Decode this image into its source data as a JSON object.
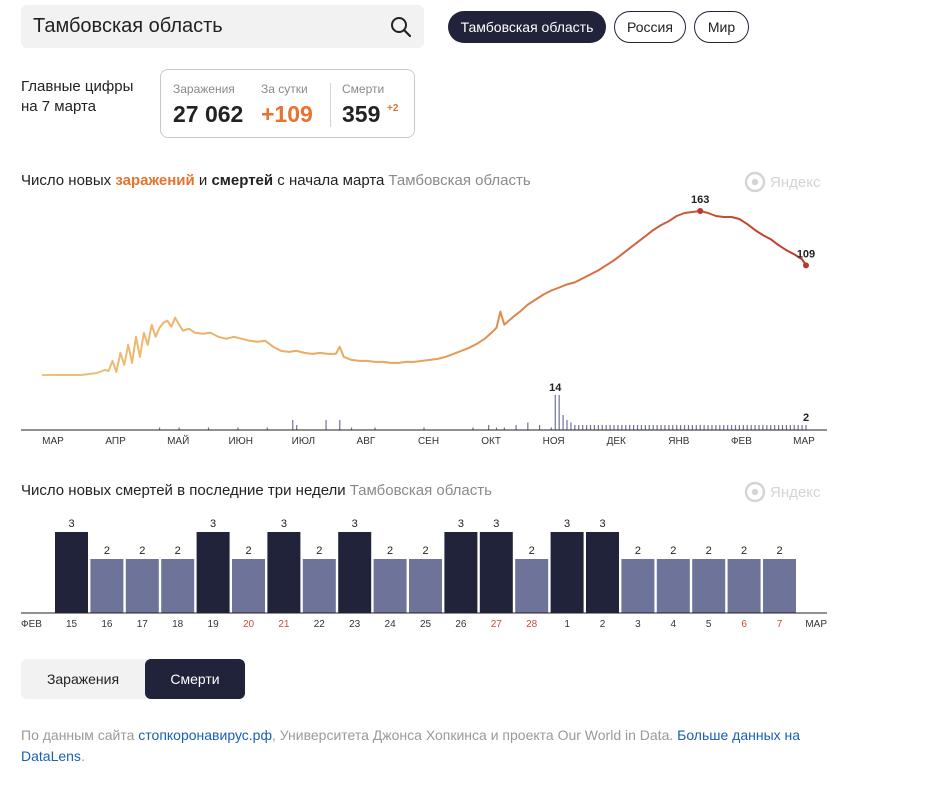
{
  "search": {
    "value": "Тамбовская область"
  },
  "region_chips": [
    {
      "label": "Тамбовская область",
      "active": true
    },
    {
      "label": "Россия",
      "active": false
    },
    {
      "label": "Мир",
      "active": false
    }
  ],
  "summary": {
    "label_line1": "Главные цифры",
    "label_line2": "на 7 марта",
    "infections_label": "Заражения",
    "infections_value": "27 062",
    "daily_label": "За сутки",
    "daily_value": "+109",
    "deaths_label": "Смерти",
    "deaths_value": "359",
    "deaths_delta": "+2"
  },
  "chart1": {
    "title_part1": "Число новых ",
    "title_cases": "заражений",
    "title_part2": " и ",
    "title_deaths": "смертей",
    "title_part3": " с начала марта",
    "region": "Тамбовская область",
    "logo_text": "Яндекс"
  },
  "chart2": {
    "title": "Число новых смертей в последние три недели",
    "region": "Тамбовская область",
    "logo_text": "Яндекс"
  },
  "toggle": {
    "infections": "Заражения",
    "deaths": "Смерти",
    "active": "deaths"
  },
  "footer": {
    "text1": "По данным сайта ",
    "link1": "стопкоронавирус.рф",
    "text2": ",  Университета Джонса Хопкинса и  проекта Our World in Data. ",
    "link2": "Больше данных на DataLens",
    "text3": "."
  },
  "colors": {
    "cases_start": "#eec07a",
    "cases_end": "#b8382e",
    "deaths_bar": "#20233a",
    "deaths_bar_light": "#6e7399",
    "weekend": "#d04a3a",
    "accent": "#e8722e"
  },
  "chart_data": [
    {
      "type": "line",
      "x_axis_labels": [
        "МАР",
        "АПР",
        "МАЙ",
        "ИЮН",
        "ИЮЛ",
        "АВГ",
        "СЕН",
        "ОКТ",
        "НОЯ",
        "ДЕК",
        "ЯНВ",
        "ФЕВ",
        "МАР"
      ],
      "series": [
        {
          "name": "заражений",
          "points": [
            [
              0,
              0
            ],
            [
              20,
              0
            ],
            [
              28,
              2
            ],
            [
              32,
              5
            ],
            [
              34,
              4
            ],
            [
              36,
              14
            ],
            [
              38,
              3
            ],
            [
              40,
              22
            ],
            [
              42,
              10
            ],
            [
              44,
              30
            ],
            [
              46,
              12
            ],
            [
              48,
              38
            ],
            [
              50,
              18
            ],
            [
              52,
              42
            ],
            [
              54,
              30
            ],
            [
              56,
              50
            ],
            [
              58,
              38
            ],
            [
              60,
              47
            ],
            [
              62,
              52
            ],
            [
              64,
              54
            ],
            [
              66,
              48
            ],
            [
              68,
              57
            ],
            [
              70,
              50
            ],
            [
              72,
              44
            ],
            [
              75,
              46
            ],
            [
              78,
              42
            ],
            [
              82,
              41
            ],
            [
              86,
              42
            ],
            [
              90,
              38
            ],
            [
              94,
              36
            ],
            [
              98,
              38
            ],
            [
              102,
              36
            ],
            [
              106,
              34
            ],
            [
              110,
              33
            ],
            [
              114,
              34
            ],
            [
              118,
              28
            ],
            [
              122,
              24
            ],
            [
              126,
              23
            ],
            [
              130,
              24
            ],
            [
              134,
              22
            ],
            [
              138,
              21
            ],
            [
              142,
              22
            ],
            [
              146,
              21
            ],
            [
              150,
              21
            ],
            [
              152,
              28
            ],
            [
              154,
              18
            ],
            [
              158,
              15
            ],
            [
              162,
              14
            ],
            [
              166,
              14
            ],
            [
              170,
              13
            ],
            [
              174,
              13
            ],
            [
              178,
              12
            ],
            [
              182,
              12
            ],
            [
              186,
              13
            ],
            [
              190,
              13
            ],
            [
              194,
              14
            ],
            [
              198,
              15
            ],
            [
              202,
              16
            ],
            [
              206,
              18
            ],
            [
              210,
              21
            ],
            [
              214,
              24
            ],
            [
              218,
              27
            ],
            [
              222,
              31
            ],
            [
              226,
              36
            ],
            [
              230,
              43
            ],
            [
              232,
              47
            ],
            [
              234,
              63
            ],
            [
              236,
              50
            ],
            [
              240,
              57
            ],
            [
              244,
              63
            ],
            [
              248,
              70
            ],
            [
              252,
              75
            ],
            [
              256,
              80
            ],
            [
              260,
              84
            ],
            [
              264,
              87
            ],
            [
              268,
              90
            ],
            [
              272,
              92
            ],
            [
              276,
              96
            ],
            [
              280,
              100
            ],
            [
              284,
              104
            ],
            [
              288,
              109
            ],
            [
              292,
              114
            ],
            [
              296,
              120
            ],
            [
              300,
              126
            ],
            [
              304,
              132
            ],
            [
              308,
              138
            ],
            [
              312,
              144
            ],
            [
              316,
              149
            ],
            [
              320,
              153
            ],
            [
              324,
              158
            ],
            [
              328,
              161
            ],
            [
              332,
              162
            ],
            [
              336,
              163
            ],
            [
              340,
              161
            ],
            [
              344,
              158
            ],
            [
              348,
              157
            ],
            [
              352,
              157
            ],
            [
              356,
              155
            ],
            [
              360,
              150
            ],
            [
              364,
              144
            ],
            [
              368,
              139
            ],
            [
              372,
              135
            ],
            [
              376,
              129
            ],
            [
              380,
              124
            ],
            [
              384,
              120
            ],
            [
              388,
              115
            ],
            [
              390,
              109
            ]
          ]
        },
        {
          "name": "смертей",
          "bars": [
            [
              60,
              1
            ],
            [
              70,
              1
            ],
            [
              85,
              1
            ],
            [
              100,
              1
            ],
            [
              115,
              1
            ],
            [
              128,
              4
            ],
            [
              130,
              2
            ],
            [
              145,
              4
            ],
            [
              152,
              4
            ],
            [
              158,
              1
            ],
            [
              170,
              1
            ],
            [
              195,
              1
            ],
            [
              220,
              1
            ],
            [
              228,
              2
            ],
            [
              232,
              1
            ],
            [
              236,
              1
            ],
            [
              242,
              2
            ],
            [
              248,
              3
            ],
            [
              254,
              2
            ],
            [
              260,
              1
            ],
            [
              262,
              14
            ],
            [
              264,
              14
            ],
            [
              266,
              6
            ],
            [
              268,
              4
            ],
            [
              270,
              3
            ],
            [
              272,
              2
            ],
            [
              274,
              2
            ],
            [
              276,
              2
            ],
            [
              278,
              2
            ],
            [
              280,
              2
            ],
            [
              282,
              2
            ],
            [
              284,
              2
            ],
            [
              286,
              2
            ],
            [
              288,
              2
            ],
            [
              290,
              2
            ],
            [
              292,
              2
            ],
            [
              294,
              2
            ],
            [
              296,
              2
            ],
            [
              298,
              2
            ],
            [
              300,
              2
            ],
            [
              302,
              2
            ],
            [
              304,
              2
            ],
            [
              306,
              2
            ],
            [
              308,
              2
            ],
            [
              310,
              2
            ],
            [
              312,
              2
            ],
            [
              314,
              2
            ],
            [
              316,
              2
            ],
            [
              318,
              2
            ],
            [
              320,
              2
            ],
            [
              322,
              2
            ],
            [
              324,
              2
            ],
            [
              326,
              2
            ],
            [
              328,
              2
            ],
            [
              330,
              2
            ],
            [
              332,
              2
            ],
            [
              334,
              2
            ],
            [
              336,
              2
            ],
            [
              338,
              2
            ],
            [
              340,
              2
            ],
            [
              342,
              2
            ],
            [
              344,
              2
            ],
            [
              346,
              2
            ],
            [
              348,
              2
            ],
            [
              350,
              2
            ],
            [
              352,
              2
            ],
            [
              354,
              2
            ],
            [
              356,
              2
            ],
            [
              358,
              2
            ],
            [
              360,
              2
            ],
            [
              362,
              2
            ],
            [
              364,
              2
            ],
            [
              366,
              2
            ],
            [
              368,
              2
            ],
            [
              370,
              2
            ],
            [
              372,
              2
            ],
            [
              374,
              2
            ],
            [
              376,
              2
            ],
            [
              378,
              2
            ],
            [
              380,
              2
            ],
            [
              382,
              2
            ],
            [
              384,
              2
            ],
            [
              386,
              2
            ],
            [
              388,
              2
            ],
            [
              390,
              2
            ]
          ]
        }
      ],
      "annotations": [
        {
          "series": "заражений",
          "x": 336,
          "value": 163
        },
        {
          "series": "заражений",
          "x": 390,
          "value": 109
        },
        {
          "series": "смертей",
          "x": 262,
          "value": 14
        },
        {
          "series": "смертей",
          "x": 390,
          "value": 2
        }
      ]
    },
    {
      "type": "bar",
      "start_label": "ФЕВ",
      "end_label": "МАР",
      "categories": [
        "15",
        "16",
        "17",
        "18",
        "19",
        "20",
        "21",
        "22",
        "23",
        "24",
        "25",
        "26",
        "27",
        "28",
        "1",
        "2",
        "3",
        "4",
        "5",
        "6",
        "7"
      ],
      "values": [
        3,
        2,
        2,
        2,
        3,
        2,
        3,
        2,
        3,
        2,
        2,
        3,
        3,
        2,
        3,
        3,
        2,
        2,
        2,
        2,
        2
      ],
      "weekend_categories": [
        "20",
        "21",
        "27",
        "28",
        "6",
        "7"
      ],
      "ylim": [
        0,
        3
      ]
    }
  ]
}
